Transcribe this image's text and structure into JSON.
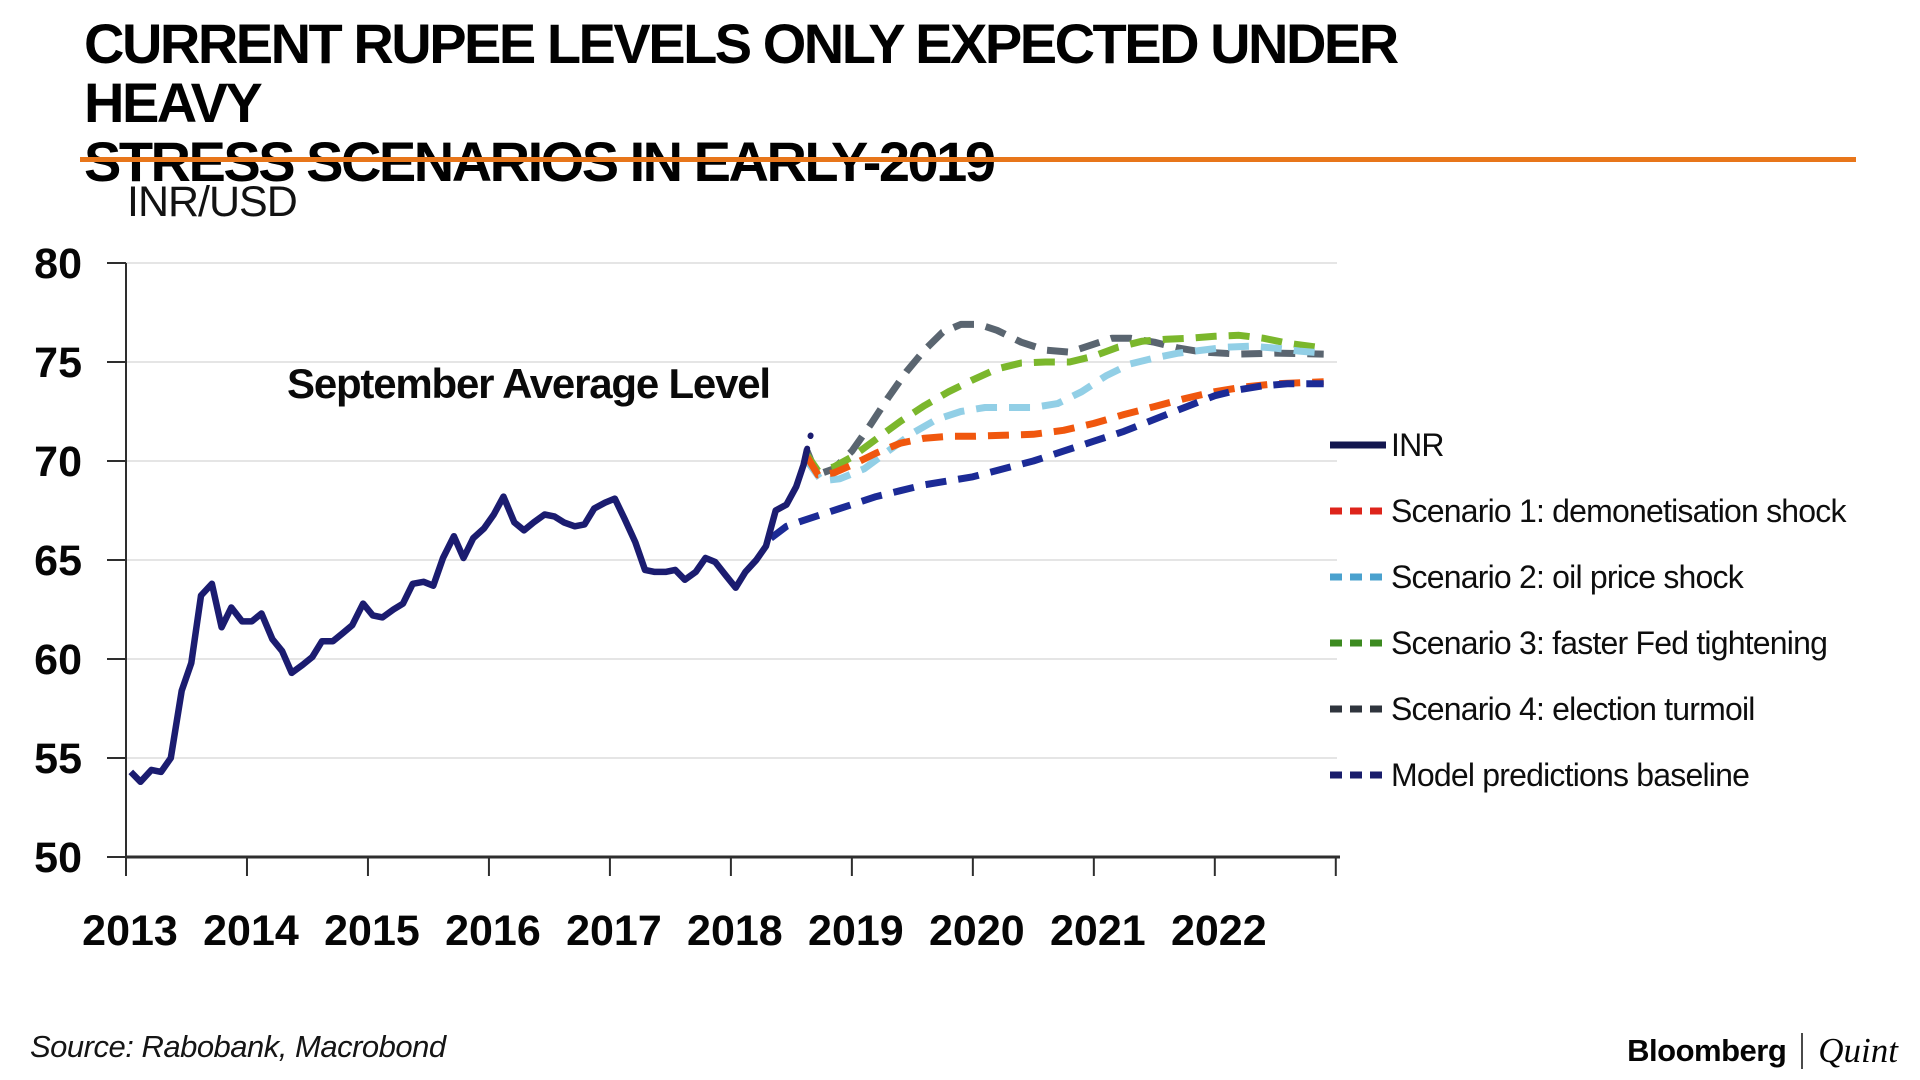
{
  "header": {
    "title_lines": [
      "CURRENT RUPEE LEVELS ONLY EXPECTED UNDER HEAVY",
      "STRESS SCENARIOS IN EARLY-2019"
    ],
    "rule_color": "#E8761A"
  },
  "chart_data": {
    "type": "line",
    "axis_title": "INR/USD",
    "annotation": "September Average Level",
    "x_axis": {
      "min": 2013,
      "max": 2023.01,
      "tick_years": [
        2013,
        2014,
        2015,
        2016,
        2017,
        2018,
        2019,
        2020,
        2021,
        2022,
        2023
      ],
      "labels": [
        "2013",
        "2014",
        "2015",
        "2016",
        "2017",
        "2018",
        "2019",
        "2020",
        "2021",
        "2022"
      ],
      "label_years": [
        2013,
        2014,
        2015,
        2016,
        2017,
        2018,
        2019,
        2020,
        2021,
        2022
      ]
    },
    "y_axis": {
      "min": 50,
      "max": 80,
      "ticks": [
        50,
        55,
        60,
        65,
        70,
        75,
        80
      ],
      "gridlines": [
        55,
        60,
        65,
        70,
        75,
        80
      ]
    },
    "series": [
      {
        "id": "scenario4",
        "name": "Scenario 4: election turmoil",
        "color": "#5A6570",
        "width": 7,
        "dash": [
          21,
          12
        ],
        "points": [
          [
            2018.63,
            70.5
          ],
          [
            2018.71,
            69.3
          ],
          [
            2018.85,
            69.6
          ],
          [
            2019.0,
            70.5
          ],
          [
            2019.15,
            71.8
          ],
          [
            2019.3,
            73.2
          ],
          [
            2019.45,
            74.5
          ],
          [
            2019.6,
            75.6
          ],
          [
            2019.75,
            76.5
          ],
          [
            2019.9,
            76.9
          ],
          [
            2020.05,
            76.9
          ],
          [
            2020.2,
            76.6
          ],
          [
            2020.4,
            76.0
          ],
          [
            2020.6,
            75.6
          ],
          [
            2020.8,
            75.5
          ],
          [
            2021.0,
            75.9
          ],
          [
            2021.15,
            76.2
          ],
          [
            2021.3,
            76.2
          ],
          [
            2021.5,
            76.0
          ],
          [
            2021.7,
            75.7
          ],
          [
            2021.9,
            75.5
          ],
          [
            2022.2,
            75.4
          ],
          [
            2022.5,
            75.45
          ],
          [
            2022.9,
            75.4
          ]
        ]
      },
      {
        "id": "scenario3",
        "name": "Scenario 3: faster Fed tightening",
        "color": "#7BB72C",
        "width": 7,
        "dash": [
          21,
          12
        ],
        "points": [
          [
            2018.63,
            70.3
          ],
          [
            2018.72,
            69.5
          ],
          [
            2018.85,
            69.7
          ],
          [
            2019.0,
            70.2
          ],
          [
            2019.2,
            71.1
          ],
          [
            2019.4,
            72.0
          ],
          [
            2019.6,
            72.8
          ],
          [
            2019.8,
            73.5
          ],
          [
            2020.0,
            74.1
          ],
          [
            2020.2,
            74.65
          ],
          [
            2020.4,
            74.95
          ],
          [
            2020.6,
            75.0
          ],
          [
            2020.8,
            75.0
          ],
          [
            2021.0,
            75.3
          ],
          [
            2021.2,
            75.75
          ],
          [
            2021.4,
            76.05
          ],
          [
            2021.6,
            76.15
          ],
          [
            2021.8,
            76.2
          ],
          [
            2022.0,
            76.3
          ],
          [
            2022.2,
            76.35
          ],
          [
            2022.4,
            76.2
          ],
          [
            2022.6,
            75.95
          ],
          [
            2022.9,
            75.7
          ]
        ]
      },
      {
        "id": "scenario2",
        "name": "Scenario 2: oil price shock",
        "color": "#92CFE6",
        "width": 7,
        "dash": [
          21,
          12
        ],
        "points": [
          [
            2018.63,
            70.0
          ],
          [
            2018.75,
            69.0
          ],
          [
            2018.9,
            69.1
          ],
          [
            2019.1,
            69.6
          ],
          [
            2019.3,
            70.5
          ],
          [
            2019.5,
            71.4
          ],
          [
            2019.7,
            72.1
          ],
          [
            2019.9,
            72.5
          ],
          [
            2020.1,
            72.7
          ],
          [
            2020.3,
            72.7
          ],
          [
            2020.5,
            72.7
          ],
          [
            2020.7,
            72.9
          ],
          [
            2020.9,
            73.5
          ],
          [
            2021.1,
            74.3
          ],
          [
            2021.3,
            74.9
          ],
          [
            2021.5,
            75.2
          ],
          [
            2021.7,
            75.45
          ],
          [
            2021.9,
            75.6
          ],
          [
            2022.1,
            75.75
          ],
          [
            2022.3,
            75.8
          ],
          [
            2022.5,
            75.7
          ],
          [
            2022.7,
            75.55
          ],
          [
            2022.9,
            75.45
          ]
        ]
      },
      {
        "id": "scenario1",
        "name": "Scenario 1: demonetisation shock",
        "color": "#F0570E",
        "width": 7,
        "dash": [
          21,
          12
        ],
        "points": [
          [
            2018.63,
            70.2
          ],
          [
            2018.72,
            69.3
          ],
          [
            2018.85,
            69.4
          ],
          [
            2019.0,
            69.8
          ],
          [
            2019.2,
            70.4
          ],
          [
            2019.4,
            70.9
          ],
          [
            2019.6,
            71.15
          ],
          [
            2019.8,
            71.25
          ],
          [
            2020.0,
            71.25
          ],
          [
            2020.25,
            71.3
          ],
          [
            2020.5,
            71.35
          ],
          [
            2020.75,
            71.55
          ],
          [
            2021.0,
            71.9
          ],
          [
            2021.25,
            72.35
          ],
          [
            2021.5,
            72.75
          ],
          [
            2021.75,
            73.15
          ],
          [
            2022.0,
            73.5
          ],
          [
            2022.25,
            73.75
          ],
          [
            2022.5,
            73.9
          ],
          [
            2022.9,
            74.0
          ]
        ]
      },
      {
        "id": "baseline",
        "name": "Model predictions baseline",
        "color": "#1C2B96",
        "width": 7,
        "dash": [
          21,
          12
        ],
        "points": [
          [
            2018.33,
            66.1
          ],
          [
            2018.46,
            66.7
          ],
          [
            2018.6,
            67.0
          ],
          [
            2018.75,
            67.3
          ],
          [
            2018.9,
            67.6
          ],
          [
            2019.05,
            67.9
          ],
          [
            2019.2,
            68.2
          ],
          [
            2019.4,
            68.5
          ],
          [
            2019.6,
            68.8
          ],
          [
            2019.8,
            69.0
          ],
          [
            2020.0,
            69.2
          ],
          [
            2020.25,
            69.6
          ],
          [
            2020.5,
            70.0
          ],
          [
            2020.75,
            70.5
          ],
          [
            2021.0,
            71.0
          ],
          [
            2021.25,
            71.5
          ],
          [
            2021.5,
            72.1
          ],
          [
            2021.75,
            72.7
          ],
          [
            2022.0,
            73.3
          ],
          [
            2022.2,
            73.6
          ],
          [
            2022.4,
            73.8
          ],
          [
            2022.6,
            73.9
          ],
          [
            2022.9,
            73.9
          ]
        ]
      },
      {
        "id": "inr",
        "name": "INR",
        "color": "#1B1C70",
        "width": 6.5,
        "dash": null,
        "points": [
          [
            2013.04,
            54.3
          ],
          [
            2013.12,
            53.8
          ],
          [
            2013.21,
            54.4
          ],
          [
            2013.29,
            54.3
          ],
          [
            2013.37,
            55.0
          ],
          [
            2013.46,
            58.4
          ],
          [
            2013.54,
            59.8
          ],
          [
            2013.62,
            63.2
          ],
          [
            2013.71,
            63.8
          ],
          [
            2013.79,
            61.6
          ],
          [
            2013.87,
            62.6
          ],
          [
            2013.96,
            61.9
          ],
          [
            2014.04,
            61.9
          ],
          [
            2014.12,
            62.3
          ],
          [
            2014.21,
            61.0
          ],
          [
            2014.29,
            60.4
          ],
          [
            2014.37,
            59.3
          ],
          [
            2014.46,
            59.7
          ],
          [
            2014.54,
            60.1
          ],
          [
            2014.62,
            60.9
          ],
          [
            2014.71,
            60.9
          ],
          [
            2014.79,
            61.3
          ],
          [
            2014.87,
            61.7
          ],
          [
            2014.96,
            62.8
          ],
          [
            2015.04,
            62.2
          ],
          [
            2015.12,
            62.1
          ],
          [
            2015.21,
            62.5
          ],
          [
            2015.29,
            62.8
          ],
          [
            2015.37,
            63.8
          ],
          [
            2015.46,
            63.9
          ],
          [
            2015.54,
            63.7
          ],
          [
            2015.62,
            65.1
          ],
          [
            2015.71,
            66.2
          ],
          [
            2015.79,
            65.1
          ],
          [
            2015.87,
            66.1
          ],
          [
            2015.96,
            66.6
          ],
          [
            2016.04,
            67.3
          ],
          [
            2016.12,
            68.2
          ],
          [
            2016.21,
            66.9
          ],
          [
            2016.29,
            66.5
          ],
          [
            2016.37,
            66.9
          ],
          [
            2016.46,
            67.3
          ],
          [
            2016.54,
            67.2
          ],
          [
            2016.62,
            66.9
          ],
          [
            2016.71,
            66.7
          ],
          [
            2016.79,
            66.8
          ],
          [
            2016.87,
            67.6
          ],
          [
            2016.96,
            67.9
          ],
          [
            2017.04,
            68.1
          ],
          [
            2017.12,
            67.1
          ],
          [
            2017.21,
            65.9
          ],
          [
            2017.29,
            64.5
          ],
          [
            2017.37,
            64.4
          ],
          [
            2017.46,
            64.4
          ],
          [
            2017.54,
            64.5
          ],
          [
            2017.62,
            64.0
          ],
          [
            2017.71,
            64.4
          ],
          [
            2017.79,
            65.1
          ],
          [
            2017.87,
            64.9
          ],
          [
            2017.96,
            64.2
          ],
          [
            2018.04,
            63.6
          ],
          [
            2018.12,
            64.4
          ],
          [
            2018.21,
            65.0
          ],
          [
            2018.29,
            65.7
          ],
          [
            2018.37,
            67.5
          ],
          [
            2018.46,
            67.8
          ],
          [
            2018.54,
            68.7
          ],
          [
            2018.6,
            69.8
          ],
          [
            2018.63,
            70.6
          ]
        ]
      },
      {
        "id": "inr_september_dotted",
        "name": null,
        "color": "#1B1C70",
        "width": 6,
        "dash": [
          0.5,
          13
        ],
        "cap": "round",
        "points": [
          [
            2018.63,
            70.6
          ],
          [
            2018.66,
            71.3
          ],
          [
            2018.69,
            71.9
          ]
        ]
      }
    ]
  },
  "legend": {
    "items": [
      {
        "label": "INR",
        "color": "#13164F",
        "style": "solid"
      },
      {
        "label": "Scenario 1: demonetisation shock",
        "color": "#DE241B",
        "style": "dashed"
      },
      {
        "label": "Scenario 2: oil price shock",
        "color": "#4AA1CE",
        "style": "dashed"
      },
      {
        "label": "Scenario 3: faster Fed tightening",
        "color": "#3C8A20",
        "style": "dashed"
      },
      {
        "label": "Scenario 4: election turmoil",
        "color": "#2F353D",
        "style": "dashed"
      },
      {
        "label": "Model predictions baseline",
        "color": "#191D6B",
        "style": "dashed"
      }
    ]
  },
  "footer": {
    "source": "Source: Rabobank, Macrobond",
    "brand": "Bloomberg",
    "brand_partner": "Quint",
    "separator": "|"
  }
}
